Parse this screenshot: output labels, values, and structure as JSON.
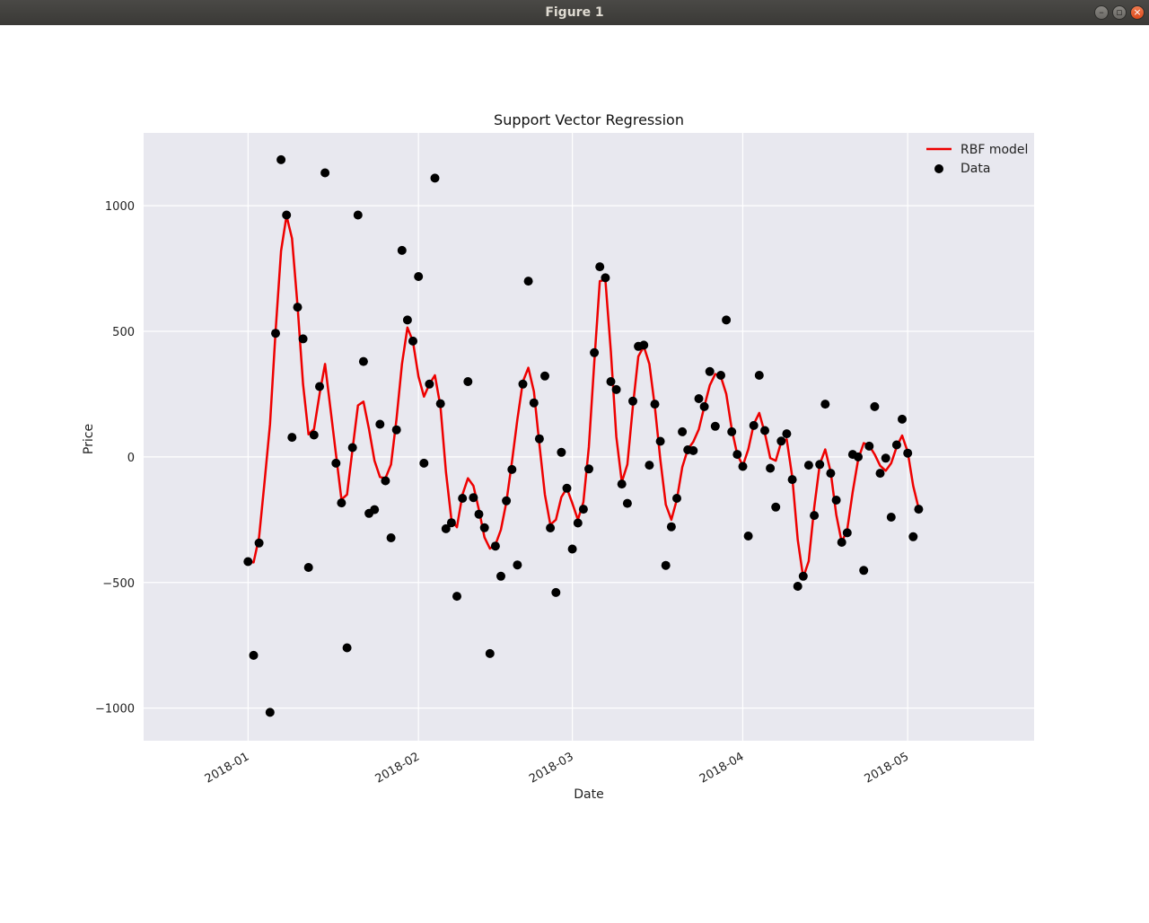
{
  "window": {
    "title": "Figure 1"
  },
  "colors": {
    "line": "#ee0000",
    "points": "#000000",
    "plot_bg": "#e8e8ef",
    "grid": "#ffffff"
  },
  "chart_data": {
    "type": "scatter",
    "title": "Support Vector Regression",
    "xlabel": "Date",
    "ylabel": "Price",
    "xlim": [
      "2017-12-13",
      "2018-05-24"
    ],
    "ylim": [
      -1130,
      1290
    ],
    "xticks": [
      "2018-01-01",
      "2018-02-01",
      "2018-03-01",
      "2018-04-01",
      "2018-05-01"
    ],
    "xtick_labels": [
      "2018-01",
      "2018-02",
      "2018-03",
      "2018-04",
      "2018-05"
    ],
    "yticks": [
      1000,
      500,
      0,
      -500,
      -1000
    ],
    "ytick_labels": [
      "1000",
      "500",
      "0",
      "−500",
      "−1000"
    ],
    "grid": true,
    "legend": "top-right",
    "legend_entries": [
      "RBF model",
      "Data"
    ],
    "series": [
      {
        "name": "Data",
        "kind": "scatter",
        "points": [
          [
            "2018-01-01",
            -417
          ],
          [
            "2018-01-02",
            -790
          ],
          [
            "2018-01-03",
            -343
          ],
          [
            "2018-01-05",
            -1017
          ],
          [
            "2018-01-06",
            492
          ],
          [
            "2018-01-07",
            1183
          ],
          [
            "2018-01-08",
            963
          ],
          [
            "2018-01-09",
            78
          ],
          [
            "2018-01-10",
            596
          ],
          [
            "2018-01-11",
            470
          ],
          [
            "2018-01-12",
            -440
          ],
          [
            "2018-01-13",
            87
          ],
          [
            "2018-01-14",
            280
          ],
          [
            "2018-01-15",
            1131
          ],
          [
            "2018-01-17",
            -25
          ],
          [
            "2018-01-18",
            -183
          ],
          [
            "2018-01-19",
            -760
          ],
          [
            "2018-01-20",
            37
          ],
          [
            "2018-01-21",
            963
          ],
          [
            "2018-01-22",
            380
          ],
          [
            "2018-01-23",
            -225
          ],
          [
            "2018-01-24",
            -210
          ],
          [
            "2018-01-25",
            130
          ],
          [
            "2018-01-26",
            -95
          ],
          [
            "2018-01-27",
            -322
          ],
          [
            "2018-01-28",
            108
          ],
          [
            "2018-01-29",
            822
          ],
          [
            "2018-01-30",
            545
          ],
          [
            "2018-01-31",
            461
          ],
          [
            "2018-02-01",
            718
          ],
          [
            "2018-02-02",
            -25
          ],
          [
            "2018-02-03",
            290
          ],
          [
            "2018-02-04",
            1110
          ],
          [
            "2018-02-05",
            212
          ],
          [
            "2018-02-06",
            -286
          ],
          [
            "2018-02-07",
            -262
          ],
          [
            "2018-02-08",
            -555
          ],
          [
            "2018-02-09",
            -165
          ],
          [
            "2018-02-10",
            300
          ],
          [
            "2018-02-11",
            -162
          ],
          [
            "2018-02-12",
            -228
          ],
          [
            "2018-02-13",
            -282
          ],
          [
            "2018-02-14",
            -783
          ],
          [
            "2018-02-15",
            -355
          ],
          [
            "2018-02-16",
            -475
          ],
          [
            "2018-02-17",
            -175
          ],
          [
            "2018-02-18",
            -50
          ],
          [
            "2018-02-19",
            -430
          ],
          [
            "2018-02-20",
            290
          ],
          [
            "2018-02-21",
            700
          ],
          [
            "2018-02-22",
            215
          ],
          [
            "2018-02-23",
            72
          ],
          [
            "2018-02-24",
            322
          ],
          [
            "2018-02-25",
            -283
          ],
          [
            "2018-02-26",
            -540
          ],
          [
            "2018-02-27",
            18
          ],
          [
            "2018-02-28",
            -125
          ],
          [
            "2018-03-01",
            -367
          ],
          [
            "2018-03-02",
            -263
          ],
          [
            "2018-03-03",
            -208
          ],
          [
            "2018-03-04",
            -48
          ],
          [
            "2018-03-05",
            415
          ],
          [
            "2018-03-06",
            757
          ],
          [
            "2018-03-07",
            713
          ],
          [
            "2018-03-08",
            300
          ],
          [
            "2018-03-09",
            268
          ],
          [
            "2018-03-10",
            -108
          ],
          [
            "2018-03-11",
            -185
          ],
          [
            "2018-03-12",
            222
          ],
          [
            "2018-03-13",
            440
          ],
          [
            "2018-03-14",
            445
          ],
          [
            "2018-03-15",
            -33
          ],
          [
            "2018-03-16",
            210
          ],
          [
            "2018-03-17",
            62
          ],
          [
            "2018-03-18",
            -432
          ],
          [
            "2018-03-19",
            -278
          ],
          [
            "2018-03-20",
            -165
          ],
          [
            "2018-03-21",
            100
          ],
          [
            "2018-03-22",
            28
          ],
          [
            "2018-03-23",
            25
          ],
          [
            "2018-03-24",
            232
          ],
          [
            "2018-03-25",
            200
          ],
          [
            "2018-03-26",
            340
          ],
          [
            "2018-03-27",
            122
          ],
          [
            "2018-03-28",
            325
          ],
          [
            "2018-03-29",
            545
          ],
          [
            "2018-03-30",
            100
          ],
          [
            "2018-03-31",
            10
          ],
          [
            "2018-04-01",
            -38
          ],
          [
            "2018-04-02",
            -315
          ],
          [
            "2018-04-03",
            125
          ],
          [
            "2018-04-04",
            325
          ],
          [
            "2018-04-05",
            105
          ],
          [
            "2018-04-06",
            -45
          ],
          [
            "2018-04-07",
            -200
          ],
          [
            "2018-04-08",
            63
          ],
          [
            "2018-04-09",
            92
          ],
          [
            "2018-04-10",
            -90
          ],
          [
            "2018-04-11",
            -515
          ],
          [
            "2018-04-12",
            -475
          ],
          [
            "2018-04-13",
            -33
          ],
          [
            "2018-04-14",
            -233
          ],
          [
            "2018-04-15",
            -30
          ],
          [
            "2018-04-16",
            210
          ],
          [
            "2018-04-17",
            -65
          ],
          [
            "2018-04-18",
            -172
          ],
          [
            "2018-04-19",
            -340
          ],
          [
            "2018-04-20",
            -302
          ],
          [
            "2018-04-21",
            10
          ],
          [
            "2018-04-22",
            0
          ],
          [
            "2018-04-23",
            -452
          ],
          [
            "2018-04-24",
            43
          ],
          [
            "2018-04-25",
            200
          ],
          [
            "2018-04-26",
            -65
          ],
          [
            "2018-04-27",
            -5
          ],
          [
            "2018-04-28",
            -240
          ],
          [
            "2018-04-29",
            48
          ],
          [
            "2018-04-30",
            150
          ],
          [
            "2018-05-01",
            15
          ],
          [
            "2018-05-02",
            -318
          ],
          [
            "2018-05-03",
            -208
          ]
        ]
      },
      {
        "name": "RBF model",
        "kind": "line",
        "points": [
          [
            "2018-01-01",
            -415
          ],
          [
            "2018-01-02",
            -420
          ],
          [
            "2018-01-03",
            -320
          ],
          [
            "2018-01-04",
            -100
          ],
          [
            "2018-01-05",
            130
          ],
          [
            "2018-01-06",
            500
          ],
          [
            "2018-01-07",
            820
          ],
          [
            "2018-01-08",
            960
          ],
          [
            "2018-01-09",
            870
          ],
          [
            "2018-01-10",
            600
          ],
          [
            "2018-01-11",
            290
          ],
          [
            "2018-01-12",
            90
          ],
          [
            "2018-01-13",
            110
          ],
          [
            "2018-01-14",
            250
          ],
          [
            "2018-01-15",
            370
          ],
          [
            "2018-01-16",
            190
          ],
          [
            "2018-01-17",
            10
          ],
          [
            "2018-01-18",
            -170
          ],
          [
            "2018-01-19",
            -150
          ],
          [
            "2018-01-20",
            30
          ],
          [
            "2018-01-21",
            205
          ],
          [
            "2018-01-22",
            220
          ],
          [
            "2018-01-23",
            110
          ],
          [
            "2018-01-24",
            -15
          ],
          [
            "2018-01-25",
            -80
          ],
          [
            "2018-01-26",
            -85
          ],
          [
            "2018-01-27",
            -30
          ],
          [
            "2018-01-28",
            150
          ],
          [
            "2018-01-29",
            370
          ],
          [
            "2018-01-30",
            515
          ],
          [
            "2018-01-31",
            460
          ],
          [
            "2018-02-01",
            320
          ],
          [
            "2018-02-02",
            240
          ],
          [
            "2018-02-03",
            290
          ],
          [
            "2018-02-04",
            325
          ],
          [
            "2018-02-05",
            200
          ],
          [
            "2018-02-06",
            -60
          ],
          [
            "2018-02-07",
            -250
          ],
          [
            "2018-02-08",
            -280
          ],
          [
            "2018-02-09",
            -150
          ],
          [
            "2018-02-10",
            -85
          ],
          [
            "2018-02-11",
            -115
          ],
          [
            "2018-02-12",
            -210
          ],
          [
            "2018-02-13",
            -320
          ],
          [
            "2018-02-14",
            -365
          ],
          [
            "2018-02-15",
            -350
          ],
          [
            "2018-02-16",
            -290
          ],
          [
            "2018-02-17",
            -180
          ],
          [
            "2018-02-18",
            -20
          ],
          [
            "2018-02-19",
            150
          ],
          [
            "2018-02-20",
            300
          ],
          [
            "2018-02-21",
            355
          ],
          [
            "2018-02-22",
            260
          ],
          [
            "2018-02-23",
            50
          ],
          [
            "2018-02-24",
            -150
          ],
          [
            "2018-02-25",
            -270
          ],
          [
            "2018-02-26",
            -250
          ],
          [
            "2018-02-27",
            -160
          ],
          [
            "2018-02-28",
            -125
          ],
          [
            "2018-03-01",
            -185
          ],
          [
            "2018-03-02",
            -250
          ],
          [
            "2018-03-03",
            -180
          ],
          [
            "2018-03-04",
            40
          ],
          [
            "2018-03-05",
            380
          ],
          [
            "2018-03-06",
            700
          ],
          [
            "2018-03-07",
            705
          ],
          [
            "2018-03-08",
            420
          ],
          [
            "2018-03-09",
            80
          ],
          [
            "2018-03-10",
            -100
          ],
          [
            "2018-03-11",
            -30
          ],
          [
            "2018-03-12",
            200
          ],
          [
            "2018-03-13",
            400
          ],
          [
            "2018-03-14",
            440
          ],
          [
            "2018-03-15",
            370
          ],
          [
            "2018-03-16",
            200
          ],
          [
            "2018-03-17",
            -10
          ],
          [
            "2018-03-18",
            -190
          ],
          [
            "2018-03-19",
            -250
          ],
          [
            "2018-03-20",
            -170
          ],
          [
            "2018-03-21",
            -40
          ],
          [
            "2018-03-22",
            30
          ],
          [
            "2018-03-23",
            60
          ],
          [
            "2018-03-24",
            110
          ],
          [
            "2018-03-25",
            200
          ],
          [
            "2018-03-26",
            285
          ],
          [
            "2018-03-27",
            330
          ],
          [
            "2018-03-28",
            320
          ],
          [
            "2018-03-29",
            250
          ],
          [
            "2018-03-30",
            110
          ],
          [
            "2018-03-31",
            10
          ],
          [
            "2018-04-01",
            -35
          ],
          [
            "2018-04-02",
            30
          ],
          [
            "2018-04-03",
            130
          ],
          [
            "2018-04-04",
            175
          ],
          [
            "2018-04-05",
            95
          ],
          [
            "2018-04-06",
            -5
          ],
          [
            "2018-04-07",
            -15
          ],
          [
            "2018-04-08",
            60
          ],
          [
            "2018-04-09",
            70
          ],
          [
            "2018-04-10",
            -80
          ],
          [
            "2018-04-11",
            -330
          ],
          [
            "2018-04-12",
            -480
          ],
          [
            "2018-04-13",
            -415
          ],
          [
            "2018-04-14",
            -200
          ],
          [
            "2018-04-15",
            -30
          ],
          [
            "2018-04-16",
            30
          ],
          [
            "2018-04-17",
            -60
          ],
          [
            "2018-04-18",
            -230
          ],
          [
            "2018-04-19",
            -340
          ],
          [
            "2018-04-20",
            -290
          ],
          [
            "2018-04-21",
            -140
          ],
          [
            "2018-04-22",
            -10
          ],
          [
            "2018-04-23",
            55
          ],
          [
            "2018-04-24",
            45
          ],
          [
            "2018-04-25",
            10
          ],
          [
            "2018-04-26",
            -35
          ],
          [
            "2018-04-27",
            -55
          ],
          [
            "2018-04-28",
            -25
          ],
          [
            "2018-04-29",
            40
          ],
          [
            "2018-04-30",
            85
          ],
          [
            "2018-05-01",
            20
          ],
          [
            "2018-05-02",
            -115
          ],
          [
            "2018-05-03",
            -205
          ]
        ]
      }
    ]
  }
}
